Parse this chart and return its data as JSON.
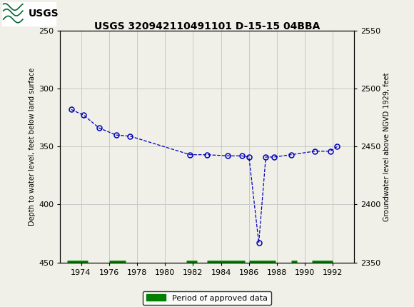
{
  "title": "USGS 320942110491101 D-15-15 04BBA",
  "ylabel_left": "Depth to water level, feet below land surface",
  "ylabel_right": "Groundwater level above NGVD 1929, feet",
  "ylim_left": [
    250,
    450
  ],
  "ylim_right": [
    2550,
    2350
  ],
  "yticks_left": [
    250,
    300,
    350,
    400,
    450
  ],
  "yticks_right": [
    2550,
    2500,
    2450,
    2400,
    2350
  ],
  "xlim": [
    1972.5,
    1993.5
  ],
  "xticks": [
    1974,
    1976,
    1978,
    1980,
    1982,
    1984,
    1986,
    1988,
    1990,
    1992
  ],
  "data_x": [
    1973.3,
    1974.2,
    1975.3,
    1976.5,
    1977.5,
    1981.8,
    1983.0,
    1984.5,
    1985.5,
    1986.0,
    1986.7,
    1987.2,
    1987.8,
    1989.0,
    1990.7,
    1991.8,
    1992.3
  ],
  "data_y": [
    318,
    323,
    334,
    340,
    341,
    357,
    357,
    358,
    358,
    359,
    433,
    359,
    359,
    357,
    354,
    354,
    350
  ],
  "line_color": "#0000bb",
  "marker_size": 5,
  "approved_periods": [
    [
      1973.0,
      1974.5
    ],
    [
      1976.0,
      1977.2
    ],
    [
      1981.5,
      1982.3
    ],
    [
      1983.0,
      1985.7
    ],
    [
      1986.0,
      1987.9
    ],
    [
      1989.0,
      1989.4
    ],
    [
      1990.5,
      1992.0
    ]
  ],
  "approved_y": 450,
  "approved_color": "#008000",
  "approved_linewidth": 5,
  "header_color": "#006633",
  "header_text_color": "#ffffff",
  "background_color": "#f0f0e8",
  "plot_bg_color": "#f0f0e8",
  "grid_color": "#c8c8c8"
}
